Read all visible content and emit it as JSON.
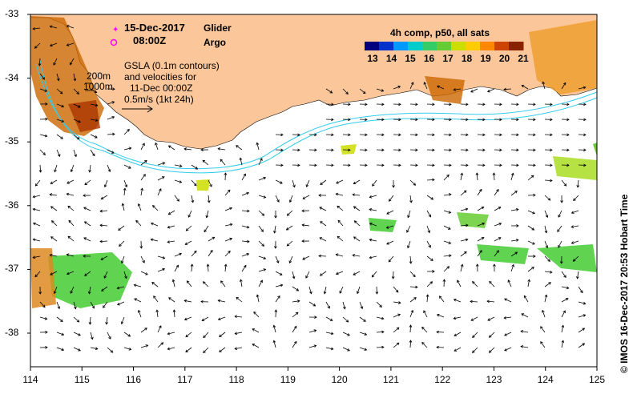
{
  "header": {
    "date": "15-Dec-2017",
    "time": "08:00Z",
    "legend_glider": "Glider",
    "legend_argo": "Argo",
    "glider_color": "#ff00ff",
    "argo_color": "#ff00ff"
  },
  "info": {
    "line1": "GSLA (0.1m contours)",
    "line2": "and velocities for",
    "line3": "11-Dec 00:00Z",
    "line4": "0.5m/s (1kt 24h)",
    "depth1": "200m",
    "depth2": "1000m"
  },
  "colorbar": {
    "title": "4h comp, p50, all sats",
    "labels": [
      "13",
      "14",
      "15",
      "16",
      "17",
      "18",
      "19",
      "20",
      "21"
    ],
    "colors": [
      "#00007f",
      "#0033cc",
      "#0099ff",
      "#00cccc",
      "#33cc66",
      "#66cc33",
      "#ccdd00",
      "#ffcc00",
      "#ff8800",
      "#cc4400",
      "#882200"
    ]
  },
  "axes": {
    "x_ticks": [
      "114",
      "115",
      "116",
      "117",
      "118",
      "119",
      "120",
      "121",
      "122",
      "123",
      "124",
      "125"
    ],
    "y_ticks": [
      "-33",
      "-34",
      "-35",
      "-36",
      "-37",
      "-38"
    ]
  },
  "credit": "© IMOS 16-Dec-2017 20:53 Hobart Time",
  "map_colors": {
    "land": "#fbc79a",
    "isobath": "#33ccee",
    "frame": "#000000"
  }
}
